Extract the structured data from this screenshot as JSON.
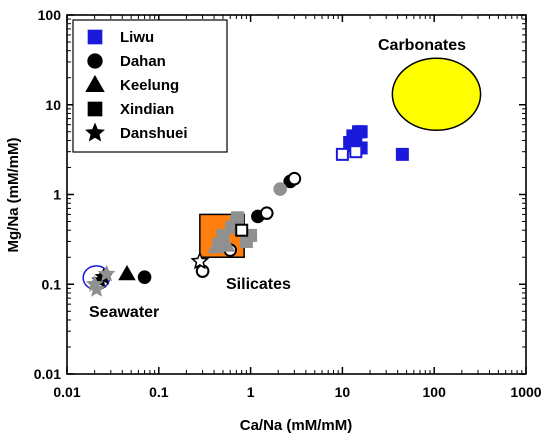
{
  "chart_data": {
    "type": "scatter",
    "xlabel": "Ca/Na (mM/mM)",
    "ylabel": "Mg/Na (mM/mM)",
    "x_scale": "log",
    "y_scale": "log",
    "xlim": [
      0.01,
      1000
    ],
    "ylim": [
      0.01,
      100
    ],
    "x_tick_labels": [
      "0.01",
      "0.1",
      "1",
      "10",
      "100",
      "1000"
    ],
    "y_tick_labels": [
      "0.01",
      "0.1",
      "1",
      "10",
      "100"
    ],
    "legend_position": "top-left",
    "legend": [
      {
        "name": "Liwu",
        "marker": "square",
        "color": "#1a1adb"
      },
      {
        "name": "Dahan",
        "marker": "circle",
        "color": "#000000"
      },
      {
        "name": "Keelung",
        "marker": "triangle",
        "color": "#000000"
      },
      {
        "name": "Xindian",
        "marker": "square",
        "color": "#000000"
      },
      {
        "name": "Danshuei",
        "marker": "star",
        "color": "#000000"
      }
    ],
    "regions": [
      {
        "label": "Carbonates",
        "shape": "ellipse",
        "fill": "#ffff00",
        "x_range": [
          35,
          320
        ],
        "y_range": [
          5.2,
          33
        ]
      },
      {
        "label": "Silicates",
        "shape": "rectangle",
        "fill": "#ff7f0e",
        "x_range": [
          0.28,
          0.85
        ],
        "y_range": [
          0.2,
          0.6
        ]
      },
      {
        "label": "Seawater",
        "shape": "ellipse",
        "fill": "none",
        "stroke": "#1a1adb",
        "x_range": [
          0.015,
          0.029
        ],
        "y_range": [
          0.087,
          0.16
        ]
      }
    ],
    "series": [
      {
        "name": "Liwu",
        "marker": "square",
        "fill": "#1a1adb",
        "stroke": "#1a1adb",
        "points": [
          [
            12,
            3.8
          ],
          [
            13,
            4.5
          ],
          [
            14,
            4.0
          ],
          [
            15,
            5.0
          ],
          [
            16,
            5.0
          ],
          [
            13,
            3.5
          ],
          [
            14,
            3.3
          ],
          [
            16,
            3.3
          ],
          [
            45,
            2.8
          ]
        ]
      },
      {
        "name": "Liwu",
        "marker": "square",
        "fill": "#ffffff",
        "stroke": "#1a1adb",
        "points": [
          [
            10,
            2.8
          ],
          [
            14,
            3.0
          ]
        ]
      },
      {
        "name": "Dahan",
        "marker": "circle",
        "fill": "#000000",
        "stroke": "#000000",
        "points": [
          [
            0.07,
            0.12
          ],
          [
            1.2,
            0.57
          ],
          [
            2.7,
            1.4
          ]
        ]
      },
      {
        "name": "Dahan",
        "marker": "circle",
        "fill": "#ffffff",
        "stroke": "#000000",
        "points": [
          [
            0.3,
            0.14
          ],
          [
            0.6,
            0.24
          ],
          [
            1.5,
            0.62
          ],
          [
            3.0,
            1.5
          ]
        ]
      },
      {
        "name": "Dahan",
        "marker": "circle",
        "fill": "#909090",
        "stroke": "#909090",
        "points": [
          [
            2.1,
            1.15
          ],
          [
            0.5,
            0.3
          ]
        ]
      },
      {
        "name": "Keelung",
        "marker": "triangle",
        "fill": "#000000",
        "stroke": "#000000",
        "points": [
          [
            0.045,
            0.13
          ]
        ]
      },
      {
        "name": "Keelung",
        "marker": "triangle",
        "fill": "#ffffff",
        "stroke": "#000000",
        "points": [
          [
            0.5,
            0.3
          ]
        ]
      },
      {
        "name": "Keelung",
        "marker": "triangle",
        "fill": "#909090",
        "stroke": "#909090",
        "points": [
          [
            0.42,
            0.26
          ],
          [
            0.55,
            0.27
          ]
        ]
      },
      {
        "name": "Xindian",
        "marker": "square",
        "fill": "#909090",
        "stroke": "#909090",
        "points": [
          [
            0.5,
            0.35
          ],
          [
            0.62,
            0.43
          ],
          [
            0.7,
            0.5
          ],
          [
            0.72,
            0.55
          ],
          [
            0.9,
            0.3
          ],
          [
            1.0,
            0.35
          ],
          [
            0.45,
            0.28
          ]
        ]
      },
      {
        "name": "Xindian",
        "marker": "square",
        "fill": "#ffffff",
        "stroke": "#000000",
        "points": [
          [
            0.8,
            0.4
          ]
        ]
      },
      {
        "name": "Danshuei",
        "marker": "star",
        "fill": "#000000",
        "stroke": "#000000",
        "points": [
          [
            0.025,
            0.12
          ],
          [
            0.023,
            0.11
          ]
        ]
      },
      {
        "name": "Danshuei",
        "marker": "star",
        "fill": "#909090",
        "stroke": "#909090",
        "points": [
          [
            0.02,
            0.1
          ],
          [
            0.021,
            0.088
          ],
          [
            0.027,
            0.13
          ]
        ]
      },
      {
        "name": "Danshuei",
        "marker": "star",
        "fill": "#ffffff",
        "stroke": "#000000",
        "points": [
          [
            0.28,
            0.18
          ]
        ]
      }
    ]
  }
}
